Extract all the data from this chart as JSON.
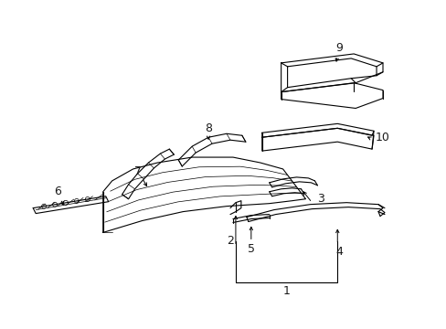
{
  "background_color": "#ffffff",
  "line_color": "#000000",
  "label_color": "#1a1a1a",
  "figsize": [
    4.89,
    3.6
  ],
  "dpi": 100,
  "label_fontsize": 9
}
